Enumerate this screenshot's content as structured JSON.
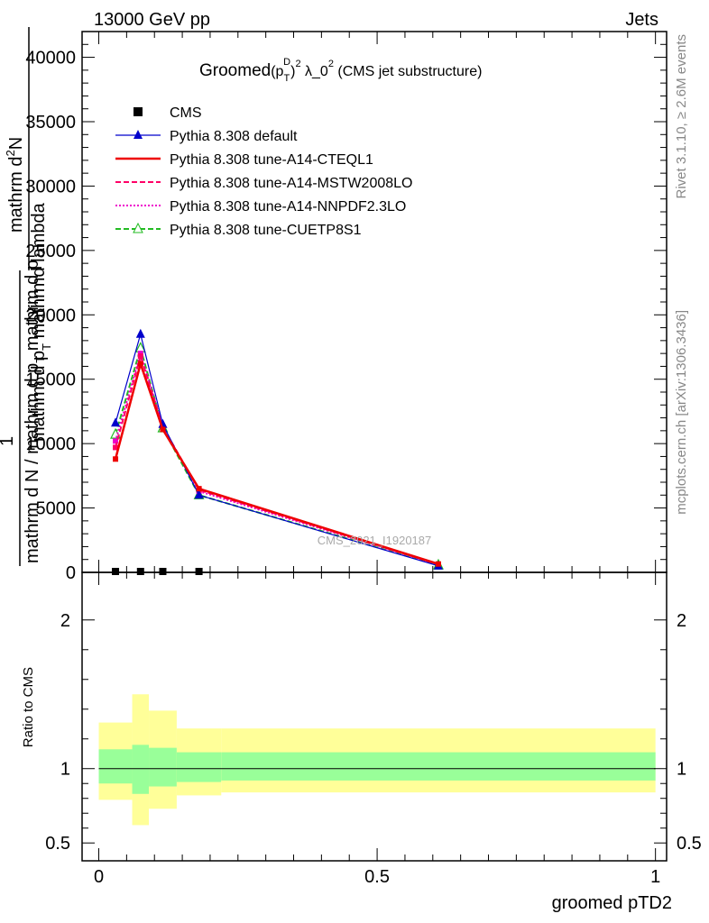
{
  "header": {
    "left": "13000 GeV pp",
    "right": "Jets"
  },
  "side_labels": {
    "rivet": "Rivet 3.1.10, ≥ 2.6M events",
    "mcplots": "mcplots.cern.ch [arXiv:1306.3436]"
  },
  "watermark": "CMS_2021_I1920187",
  "colors": {
    "cms": "#000000",
    "default": "#0000cc",
    "cteql1": "#ee0000",
    "mstw": "#ff0066",
    "nnpdf": "#ee00cc",
    "cuetp8s1": "#22bb22",
    "band_inner": "#99ff99",
    "band_outer": "#ffff99"
  },
  "chart_data": [
    {
      "type": "line",
      "title_parts": {
        "prefix": "Groomed",
        "paren_open": "(p",
        "sub": "T",
        "sup_inner": "D",
        "paren_close": ")",
        "sup_outer": "2",
        "mid": " λ_0",
        "sup_end": "2",
        "suffix": " (CMS jet substructure)"
      },
      "ylabel": {
        "line1": "mathrm d",
        "line1_sup": "2",
        "line1_end": "N",
        "line2a": "mathrm d p",
        "line2_sub": "T",
        "line2b": " mathrmd lambda",
        "line3": "1",
        "line4": "mathrm d N / mathrm d p",
        "line4_sub": "T",
        "line4_end": " mathrm d p"
      },
      "ylim": [
        0,
        42000
      ],
      "yticks": [
        {
          "v": 0,
          "label": "0"
        },
        {
          "v": 5000,
          "label": "5000"
        },
        {
          "v": 10000,
          "label": "10000"
        },
        {
          "v": 15000,
          "label": "15000"
        },
        {
          "v": 20000,
          "label": "20000"
        },
        {
          "v": 25000,
          "label": "25000"
        },
        {
          "v": 30000,
          "label": "30000"
        },
        {
          "v": 35000,
          "label": "35000"
        },
        {
          "v": 40000,
          "label": "40000"
        }
      ],
      "xlim": [
        -0.03,
        1.02
      ],
      "legend_position": "top-left",
      "series": [
        {
          "name": "CMS",
          "key": "cms",
          "style": "marker-square",
          "x": [
            0.03,
            0.075,
            0.115,
            0.18
          ],
          "y": [
            0,
            0,
            0,
            0
          ]
        },
        {
          "name": "Pythia 8.308 default",
          "key": "default",
          "style": "solid-triangle",
          "x": [
            0.03,
            0.075,
            0.115,
            0.18,
            0.61
          ],
          "y": [
            11600,
            18500,
            11500,
            6000,
            500
          ]
        },
        {
          "name": "Pythia 8.308 tune-A14-CTEQL1",
          "key": "cteql1",
          "style": "solid",
          "x": [
            0.03,
            0.075,
            0.115,
            0.18,
            0.61
          ],
          "y": [
            8800,
            16200,
            11100,
            6500,
            650
          ]
        },
        {
          "name": "Pythia 8.308 tune-A14-MSTW2008LO",
          "key": "mstw",
          "style": "dashed",
          "x": [
            0.03,
            0.075,
            0.115,
            0.18,
            0.61
          ],
          "y": [
            9700,
            16800,
            11300,
            6400,
            620
          ]
        },
        {
          "name": "Pythia 8.308 tune-A14-NNPDF2.3LO",
          "key": "nnpdf",
          "style": "dotted",
          "x": [
            0.03,
            0.075,
            0.115,
            0.18,
            0.61
          ],
          "y": [
            10200,
            17000,
            11300,
            6300,
            600
          ]
        },
        {
          "name": "Pythia 8.308 tune-CUETP8S1",
          "key": "cuetp8s1",
          "style": "dashed-open-triangle",
          "x": [
            0.03,
            0.075,
            0.115,
            0.18,
            0.61
          ],
          "y": [
            10700,
            17400,
            11200,
            6000,
            550
          ]
        }
      ]
    },
    {
      "type": "area",
      "ylabel": "Ratio to CMS",
      "xlabel": "groomed pTD2",
      "ylim": [
        0.38,
        2.32
      ],
      "xlim": [
        -0.03,
        1.02
      ],
      "yticks": [
        {
          "v": 0.5,
          "label": "0.5"
        },
        {
          "v": 1,
          "label": "1"
        },
        {
          "v": 2,
          "label": "2"
        }
      ],
      "xticks": [
        {
          "v": 0,
          "label": "0"
        },
        {
          "v": 0.5,
          "label": "0.5"
        },
        {
          "v": 1,
          "label": "1"
        }
      ],
      "bins": [
        {
          "x0": 0.0,
          "x1": 0.06,
          "inner": [
            0.9,
            1.13
          ],
          "outer": [
            0.79,
            1.31
          ]
        },
        {
          "x0": 0.06,
          "x1": 0.09,
          "inner": [
            0.83,
            1.16
          ],
          "outer": [
            0.62,
            1.5
          ]
        },
        {
          "x0": 0.09,
          "x1": 0.14,
          "inner": [
            0.88,
            1.14
          ],
          "outer": [
            0.73,
            1.39
          ]
        },
        {
          "x0": 0.14,
          "x1": 0.22,
          "inner": [
            0.91,
            1.11
          ],
          "outer": [
            0.82,
            1.27
          ]
        },
        {
          "x0": 0.22,
          "x1": 1.0,
          "inner": [
            0.92,
            1.11
          ],
          "outer": [
            0.84,
            1.27
          ]
        }
      ]
    }
  ]
}
